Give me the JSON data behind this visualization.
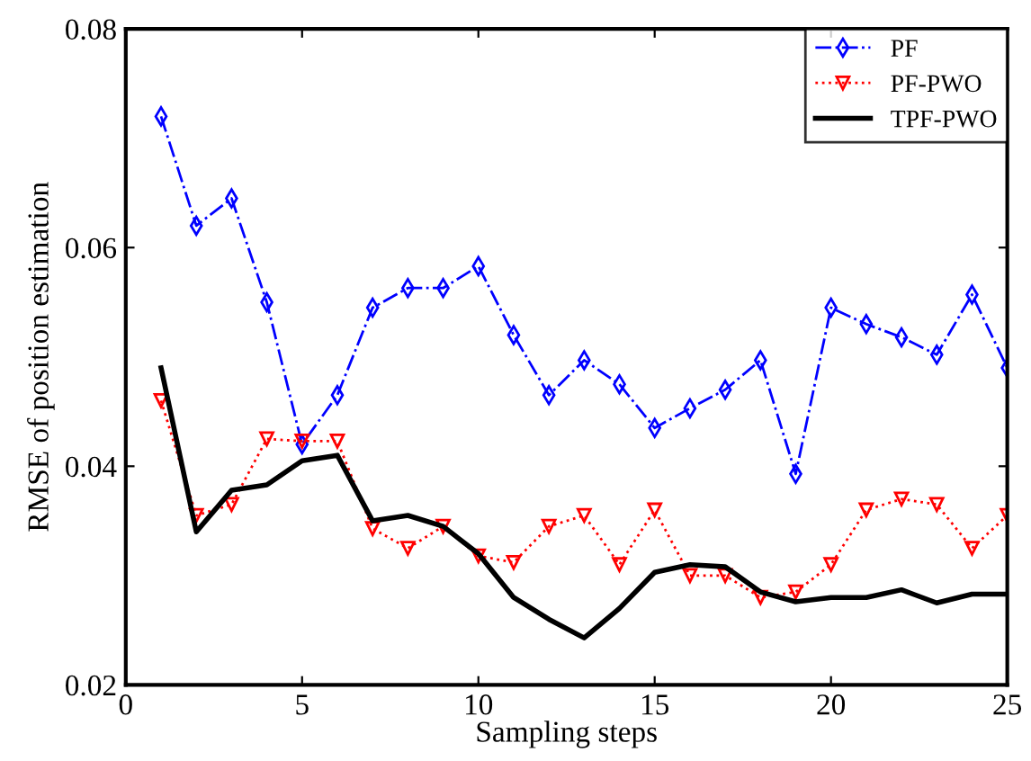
{
  "chart_data": {
    "type": "line",
    "xlabel": "Sampling steps",
    "ylabel": "RMSE of position estimation",
    "x": [
      1,
      2,
      3,
      4,
      5,
      6,
      7,
      8,
      9,
      10,
      11,
      12,
      13,
      14,
      15,
      16,
      17,
      18,
      19,
      20,
      21,
      22,
      23,
      24,
      25
    ],
    "series": [
      {
        "name": "PF",
        "color": "#0000ff",
        "marker": "diamond",
        "line_style": "dashed",
        "values": [
          0.072,
          0.062,
          0.0645,
          0.055,
          0.042,
          0.0465,
          0.0545,
          0.0563,
          0.0563,
          0.0583,
          0.052,
          0.0465,
          0.0497,
          0.0475,
          0.0435,
          0.0453,
          0.047,
          0.0497,
          0.0393,
          0.0545,
          0.053,
          0.0518,
          0.0502,
          0.0557,
          0.049
        ]
      },
      {
        "name": "PF-PWO",
        "color": "#ff0000",
        "marker": "triangle",
        "line_style": "dotted",
        "values": [
          0.046,
          0.0355,
          0.0365,
          0.0425,
          0.0423,
          0.0423,
          0.0343,
          0.0325,
          0.0345,
          0.0318,
          0.0312,
          0.0345,
          0.0355,
          0.031,
          0.036,
          0.03,
          0.03,
          0.028,
          0.0285,
          0.031,
          0.036,
          0.037,
          0.0365,
          0.0325,
          0.0355
        ]
      },
      {
        "name": "TPF-PWO",
        "color": "#000000",
        "marker": "none",
        "line_style": "solid",
        "values": [
          0.049,
          0.034,
          0.0378,
          0.0383,
          0.0405,
          0.041,
          0.035,
          0.0355,
          0.0345,
          0.032,
          0.028,
          0.026,
          0.0243,
          0.027,
          0.0303,
          0.031,
          0.0308,
          0.0285,
          0.0276,
          0.028,
          0.028,
          0.0287,
          0.0275,
          0.0283,
          0.0283
        ]
      }
    ],
    "xlim": [
      0,
      25
    ],
    "xticks": [
      0,
      5,
      10,
      15,
      20,
      25
    ],
    "ylim": [
      0.02,
      0.08
    ],
    "yticks": [
      0.02,
      0.04,
      0.06,
      0.08
    ],
    "grid": false,
    "legend": "top right"
  }
}
